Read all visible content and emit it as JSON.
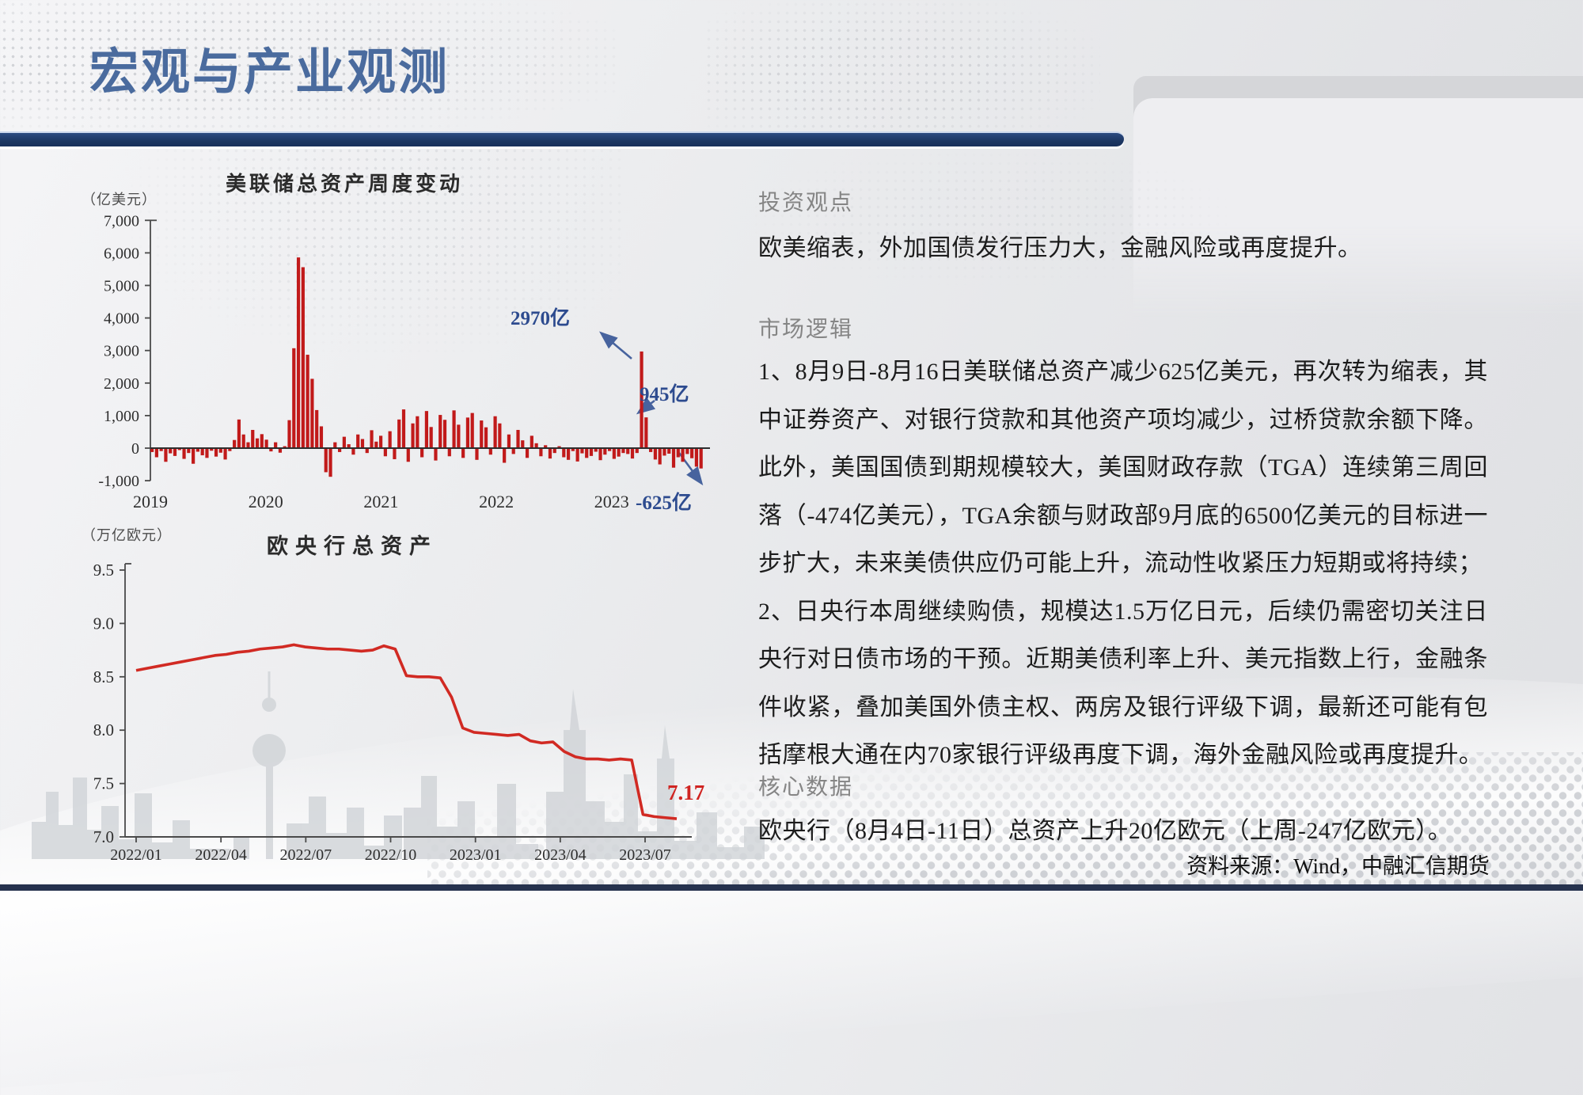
{
  "slide": {
    "title": "宏观与产业观测",
    "source_note": "资料来源：Wind，中融汇信期货"
  },
  "right_panel": {
    "viewpoint_heading": "投资观点",
    "viewpoint_body": "欧美缩表，外加国债发行压力大，金融风险或再度提升。",
    "logic_heading": "市场逻辑",
    "logic_paragraphs": {
      "p1": "1、8月9日-8月16日美联储总资产减少625亿美元，再次转为缩表，其中证券资产、对银行贷款和其他资产项均减少，过桥贷款余额下降。此外，美国国债到期规模较大，美国财政存款（TGA）连续第三周回落（-474亿美元），TGA余额与财政部9月底的6500亿美元的目标进一步扩大，未来美债供应仍可能上升，流动性收紧压力短期或将持续；",
      "p2": "2、日央行本周继续购债，规模达1.5万亿日元，后续仍需密切关注日央行对日债市场的干预。近期美债利率上升、美元指数上行，金融条件收紧，叠加美国外债主权、两房及银行评级下调，最新还可能有包括摩根大通在内70家银行评级再度下调，海外金融风险或再度提升。"
    },
    "core_heading": "核心数据",
    "core_body": "欧央行（8月4日-11日）总资产上升20亿欧元（上周-247亿欧元）。"
  },
  "colors": {
    "title_blue": "#4a6b9e",
    "navy_bar": "#1f3b6d",
    "annotation_blue": "#2d4b8f",
    "bar_red": "#c11a1a",
    "line_red": "#d12a23",
    "heading_gray": "#858585"
  },
  "chart_data": [
    {
      "name": "fed_total_assets_weekly_change",
      "type": "bar",
      "title": "美联储总资产周度变动",
      "unit_label": "（亿美元）",
      "ylim": [
        -1000,
        7000
      ],
      "y_ticks": [
        "7,000",
        "6,000",
        "5,000",
        "4,000",
        "3,000",
        "2,000",
        "1,000",
        "0",
        "-1,000"
      ],
      "x_ticks": [
        "2019",
        "2020",
        "2021",
        "2022",
        "2023"
      ],
      "grid": false,
      "bar_color": "#c11a1a",
      "values": [
        -120,
        -280,
        -90,
        -420,
        -160,
        -240,
        -60,
        -330,
        -150,
        -480,
        -110,
        -220,
        -300,
        -80,
        -260,
        -140,
        -350,
        -90,
        250,
        880,
        420,
        180,
        560,
        300,
        430,
        260,
        -100,
        180,
        -140,
        60,
        860,
        3070,
        5860,
        5560,
        2870,
        2130,
        1170,
        670,
        -740,
        -880,
        180,
        -120,
        350,
        120,
        -200,
        420,
        280,
        -150,
        550,
        200,
        380,
        -250,
        520,
        -340,
        880,
        1190,
        -420,
        760,
        980,
        -280,
        1140,
        650,
        -380,
        1020,
        870,
        -250,
        1160,
        720,
        -300,
        940,
        1080,
        -360,
        850,
        640,
        -200,
        980,
        760,
        -450,
        420,
        -180,
        560,
        240,
        -300,
        380,
        150,
        -250,
        90,
        -320,
        -150,
        60,
        -280,
        -360,
        -90,
        -410,
        -160,
        -300,
        -240,
        -110,
        -370,
        -200,
        -90,
        -330,
        -260,
        -150,
        -180,
        -320,
        -150,
        2970,
        945,
        -120,
        -350,
        -500,
        -230,
        -170,
        -600,
        -280,
        -420,
        -180,
        -310,
        -570,
        -625
      ],
      "annotations": [
        {
          "text": "2970亿",
          "value": 2970
        },
        {
          "text": "945亿",
          "value": 945
        },
        {
          "text": "-625亿",
          "value": -625
        }
      ]
    },
    {
      "name": "ecb_total_assets",
      "type": "line",
      "title": "欧央行总资产",
      "unit_label": "（万亿欧元）",
      "ylim": [
        7.0,
        9.5
      ],
      "y_ticks": [
        "9.5",
        "9.0",
        "8.5",
        "8.0",
        "7.5",
        "7.0"
      ],
      "x_ticks": [
        "2022/01",
        "2022/04",
        "2022/07",
        "2022/10",
        "2023/01",
        "2023/04",
        "2023/07"
      ],
      "grid": false,
      "line_color": "#d12a23",
      "end_label": "7.17",
      "values": [
        8.56,
        8.58,
        8.6,
        8.62,
        8.64,
        8.66,
        8.68,
        8.7,
        8.71,
        8.73,
        8.74,
        8.76,
        8.77,
        8.78,
        8.8,
        8.78,
        8.77,
        8.76,
        8.76,
        8.75,
        8.74,
        8.75,
        8.79,
        8.76,
        8.51,
        8.5,
        8.5,
        8.49,
        8.31,
        8.02,
        7.98,
        7.97,
        7.96,
        7.95,
        7.96,
        7.9,
        7.88,
        7.89,
        7.8,
        7.75,
        7.73,
        7.73,
        7.72,
        7.73,
        7.72,
        7.21,
        7.19,
        7.18,
        7.17
      ]
    }
  ]
}
